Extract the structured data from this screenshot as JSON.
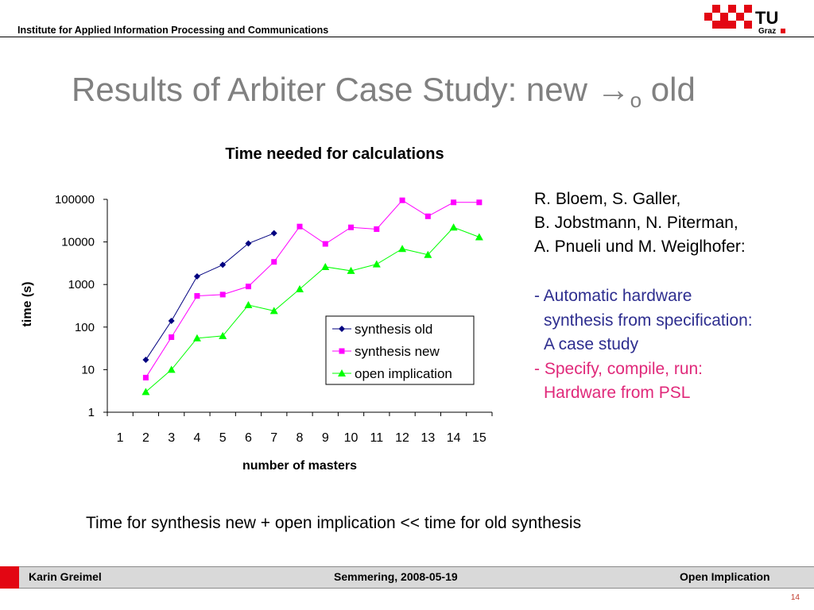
{
  "header": {
    "institute": "Institute for Applied Information Processing and Communications",
    "logo_text": "TU",
    "logo_subtext": "Graz"
  },
  "slide": {
    "title_main": "Results of Arbiter Case Study: new →",
    "title_sub": "o",
    "title_end": " old"
  },
  "authors": [
    "R. Bloem, S. Galler,",
    "B. Jobstmann, N. Piterman,",
    "A. Pnueli und M. Weiglhofer:"
  ],
  "bullets": {
    "b1_line1": "- Automatic hardware",
    "b1_line2": "synthesis from specification:",
    "b1_line3": "A case study",
    "b2_line1": "- Specify, compile, run:",
    "b2_line2": "Hardware from PSL"
  },
  "summary": "Time for synthesis new + open implication << time for old synthesis",
  "footer": {
    "author": "Karin Greimel",
    "event": "Semmering, 2008-05-19",
    "topic": "Open Implication",
    "page": "14"
  },
  "colors": {
    "title": "#808080",
    "brand_red": "#e30613",
    "bullet1": "#2e2e8f",
    "bullet2": "#e0297a"
  },
  "chart_data": {
    "type": "line",
    "title": "Time needed for calculations",
    "xlabel": "number of masters",
    "ylabel": "time (s)",
    "yscale": "log",
    "ylim": [
      1,
      100000
    ],
    "yticks": [
      "1",
      "10",
      "100",
      "1000",
      "10000",
      "100000"
    ],
    "categories": [
      "1",
      "2",
      "3",
      "4",
      "5",
      "6",
      "7",
      "8",
      "9",
      "10",
      "11",
      "12",
      "13",
      "14",
      "15"
    ],
    "legend_position": "inside-right",
    "series": [
      {
        "name": "synthesis old",
        "color": "#000080",
        "marker": "diamond",
        "values": [
          null,
          17,
          140,
          1550,
          2900,
          9200,
          16000,
          null,
          null,
          null,
          null,
          null,
          null,
          null,
          null
        ]
      },
      {
        "name": "synthesis new",
        "color": "#ff00ff",
        "marker": "square",
        "values": [
          null,
          6.5,
          58,
          540,
          580,
          900,
          3400,
          23000,
          9000,
          22000,
          20000,
          95000,
          40000,
          85000,
          85000
        ]
      },
      {
        "name": "open implication",
        "color": "#00ff00",
        "marker": "triangle",
        "values": [
          null,
          3,
          10,
          55,
          62,
          330,
          240,
          780,
          2600,
          2100,
          3000,
          6900,
          5000,
          22000,
          13000
        ]
      }
    ]
  }
}
